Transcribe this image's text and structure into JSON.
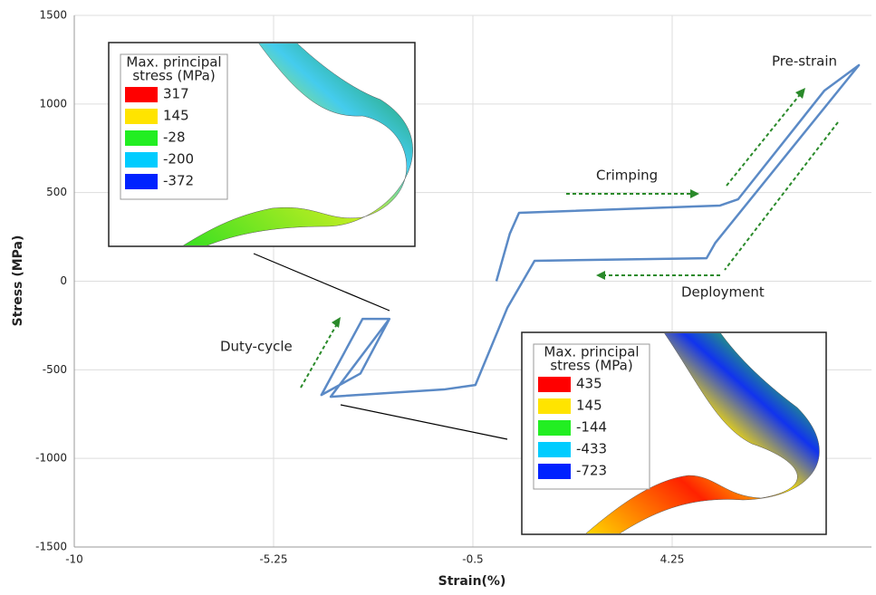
{
  "chart_data": {
    "type": "line",
    "x_label": "Strain(%)",
    "y_label": "Stress (MPa)",
    "x": [
      0.06,
      0.38,
      0.6,
      5.39,
      5.82,
      7.88,
      8.7,
      5.28,
      5.07,
      0.97,
      0.32,
      -0.44,
      -1.19,
      -3.89,
      -2.49,
      -3.13,
      -4.11,
      -3.18,
      -2.49
    ],
    "series": [
      {
        "color": "#5b8ac6",
        "values": [
          0,
          268,
          386,
          427,
          462,
          1076,
          1219,
          217,
          130,
          115,
          -151,
          -586,
          -611,
          -652,
          -213,
          -213,
          -642,
          -521,
          -213
        ]
      }
    ],
    "xlim": [
      -10,
      9
    ],
    "ylim": [
      -1500,
      1500
    ],
    "xticks": [
      -10,
      -5.25,
      -0.5,
      4.25
    ],
    "yticks": [
      -1500,
      -1000,
      -500,
      0,
      500,
      1000,
      1500
    ],
    "grid": true,
    "annotations": [
      "Pre-strain",
      "Crimping",
      "Deployment",
      "Duty-cycle"
    ]
  },
  "insets": [
    {
      "title": [
        "Max. principal",
        "stress (MPa)"
      ],
      "entries": [
        {
          "label": "317",
          "color": "#ff0000"
        },
        {
          "label": "145",
          "color": "#ffe400"
        },
        {
          "label": "-28",
          "color": "#22ee22"
        },
        {
          "label": "-200",
          "color": "#00ccff"
        },
        {
          "label": "-372",
          "color": "#0022ff"
        }
      ]
    },
    {
      "title": [
        "Max. principal",
        "stress (MPa)"
      ],
      "entries": [
        {
          "label": "435",
          "color": "#ff0000"
        },
        {
          "label": "145",
          "color": "#ffe400"
        },
        {
          "label": "-144",
          "color": "#22ee22"
        },
        {
          "label": "-433",
          "color": "#00ccff"
        },
        {
          "label": "-723",
          "color": "#0022ff"
        }
      ]
    }
  ]
}
